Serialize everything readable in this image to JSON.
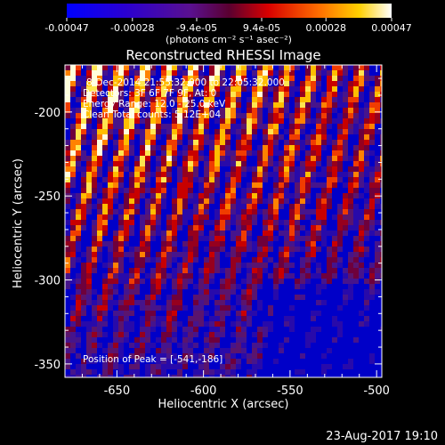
{
  "chart_data": {
    "type": "heatmap",
    "title": "Reconstructed RHESSI Image",
    "xlabel": "Heliocentric X (arcsec)",
    "ylabel": "Heliocentric Y (arcsec)",
    "xlim": [
      -680,
      -497
    ],
    "ylim": [
      -358,
      -172
    ],
    "x_ticks": [
      "-650",
      "-600",
      "-550",
      "-500"
    ],
    "x_tick_values": [
      -650,
      -600,
      -550,
      -500
    ],
    "y_ticks": [
      "-200",
      "-250",
      "-300",
      "-350"
    ],
    "y_tick_values": [
      -200,
      -250,
      -300,
      -350
    ],
    "colorbar": {
      "ticks": [
        "-0.00047",
        "-0.00028",
        "-9.4e-05",
        "9.4e-05",
        "0.00028",
        "0.00047"
      ],
      "tick_values": [
        -0.00047,
        -0.00028,
        -9.4e-05,
        9.4e-05,
        0.00028,
        0.00047
      ],
      "range": [
        -0.00047,
        0.00047
      ],
      "unit_label": "(photons cm⁻² s⁻¹ asec⁻²)",
      "colormap": "blue-purple-red-orange-yellow-white"
    },
    "annotations": {
      "time_range": "8-Dec-2014 21:55:32.000 to 22:05:32.000",
      "detectors": "Detectors: 3F 6F 7F 9F, At: 0",
      "energy": "Energy Range: 12.0 - 25.0 keV",
      "clean": "Clean    Total counts: 5.12E+04",
      "peak": "Position of Peak = [-541,-186]"
    }
  },
  "footer": {
    "timestamp": "23-Aug-2017 19:10"
  },
  "colors": {
    "background": "#000000",
    "foreground": "#ffffff"
  }
}
